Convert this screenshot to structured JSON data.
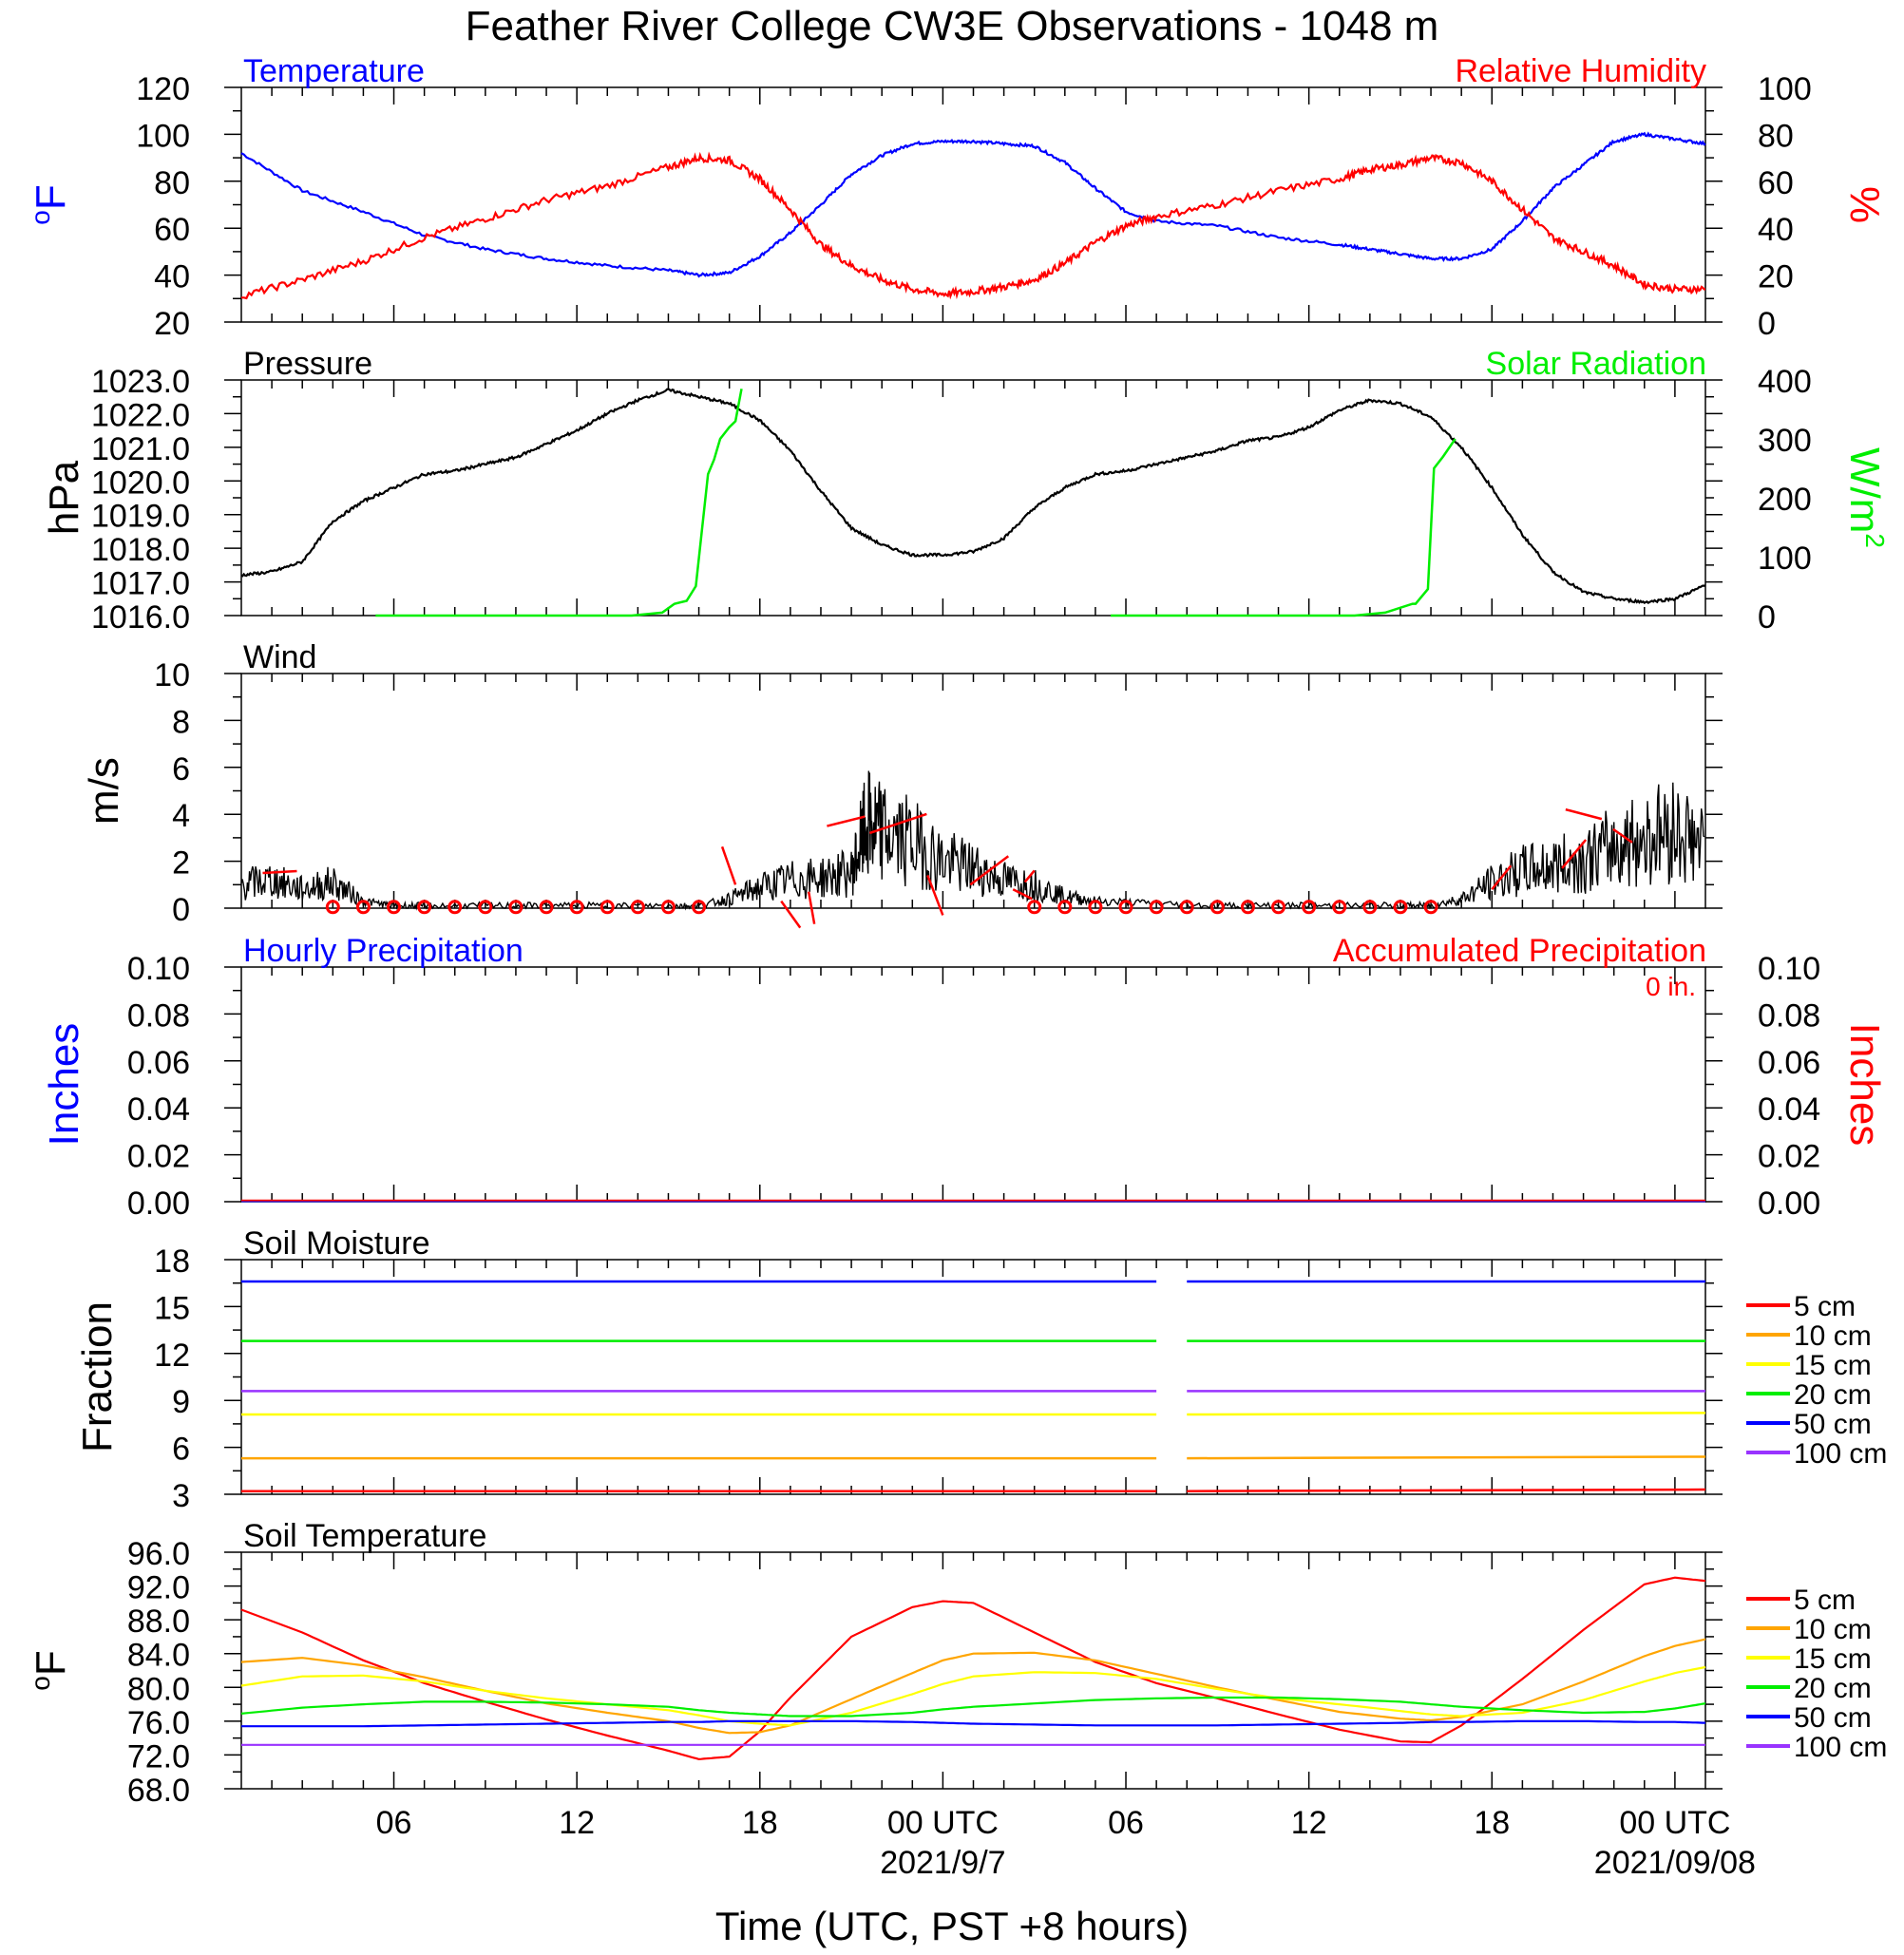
{
  "title": "Feather River College CW3E Observations - 1048 m",
  "x_axis": {
    "label": "Time (UTC, PST +8 hours)",
    "range_hours": [
      0,
      48
    ],
    "ticks": [
      {
        "h": 5,
        "label": "06"
      },
      {
        "h": 11,
        "label": "12"
      },
      {
        "h": 17,
        "label": "18"
      },
      {
        "h": 23,
        "label": "00 UTC"
      },
      {
        "h": 29,
        "label": "06"
      },
      {
        "h": 35,
        "label": "12"
      },
      {
        "h": 41,
        "label": "18"
      },
      {
        "h": 47,
        "label": "00 UTC"
      }
    ],
    "date_labels": [
      {
        "h": 23,
        "label": "2021/9/7"
      },
      {
        "h": 47,
        "label": "2021/09/08"
      }
    ]
  },
  "colors": {
    "temperature": "#0000ff",
    "humidity": "#ff0000",
    "pressure": "#000000",
    "solar": "#00ee00",
    "wind": "#000000",
    "barb": "#ff0000",
    "d5": "#ff0000",
    "d10": "#ffa500",
    "d15": "#ffff00",
    "d20": "#00ee00",
    "d50": "#0000ff",
    "d100": "#9933ff"
  },
  "panels": {
    "temp_rh": {
      "left_title": "Temperature",
      "right_title": "Relative Humidity",
      "left_unit": "oF",
      "right_unit": "%",
      "left_ticks": [
        "20",
        "40",
        "60",
        "80",
        "100",
        "120"
      ],
      "right_ticks": [
        "0",
        "20",
        "40",
        "60",
        "80",
        "100"
      ]
    },
    "pressure": {
      "left_title": "Pressure",
      "right_title": "Solar Radiation",
      "left_unit": "hPa",
      "right_unit": "W/m2",
      "left_ticks": [
        "1016.0",
        "1017.0",
        "1018.0",
        "1019.0",
        "1020.0",
        "1021.0",
        "1022.0",
        "1023.0"
      ],
      "right_ticks": [
        "0",
        "100",
        "200",
        "300",
        "400"
      ]
    },
    "wind": {
      "left_title": "Wind",
      "left_unit": "m/s",
      "left_ticks": [
        "0",
        "2",
        "4",
        "6",
        "8",
        "10"
      ]
    },
    "precip": {
      "left_title": "Hourly Precipitation",
      "right_title": "Accumulated Precipitation",
      "total_label": "0 in.",
      "left_unit": "Inches",
      "right_unit": "Inches",
      "left_ticks": [
        "0.00",
        "0.02",
        "0.04",
        "0.06",
        "0.08",
        "0.10"
      ],
      "right_ticks": [
        "0.00",
        "0.02",
        "0.04",
        "0.06",
        "0.08",
        "0.10"
      ]
    },
    "soil_moisture": {
      "left_title": "Soil Moisture",
      "left_unit": "Fraction",
      "left_ticks": [
        "3",
        "6",
        "9",
        "12",
        "15",
        "18"
      ],
      "legend": [
        "5 cm",
        "10 cm",
        "15 cm",
        "20 cm",
        "50 cm",
        "100 cm"
      ]
    },
    "soil_temp": {
      "left_title": "Soil Temperature",
      "left_unit": "oF",
      "left_ticks": [
        "68.0",
        "72.0",
        "76.0",
        "80.0",
        "84.0",
        "88.0",
        "92.0",
        "96.0"
      ],
      "legend": [
        "5 cm",
        "10 cm",
        "15 cm",
        "20 cm",
        "50 cm",
        "100 cm"
      ]
    }
  },
  "chart_data": [
    {
      "type": "line",
      "title": "Temperature",
      "x_hours": [
        0,
        2,
        4,
        6,
        8,
        10,
        12,
        14,
        15,
        16,
        17,
        18,
        19,
        20,
        21,
        22,
        23,
        24,
        25,
        26,
        27,
        28,
        29,
        30,
        32,
        34,
        36,
        37,
        38,
        39,
        40,
        41,
        42,
        43,
        44,
        45,
        46,
        47,
        48
      ],
      "series": [
        {
          "name": "Temperature",
          "axis": "left",
          "ylim": [
            20,
            120
          ],
          "values": [
            92,
            76,
            67,
            57,
            51,
            47,
            44,
            42,
            40,
            41,
            48,
            58,
            70,
            83,
            91,
            96,
            97,
            97,
            96,
            95,
            88,
            77,
            67,
            63,
            61,
            56,
            53,
            51,
            49,
            47,
            47,
            51,
            63,
            77,
            87,
            97,
            100,
            98,
            96
          ]
        },
        {
          "name": "Relative Humidity",
          "axis": "right",
          "ylim": [
            0,
            100
          ],
          "values": [
            11,
            18,
            26,
            36,
            44,
            52,
            58,
            66,
            70,
            69,
            61,
            48,
            33,
            24,
            18,
            14,
            12,
            13,
            15,
            18,
            25,
            34,
            41,
            45,
            50,
            56,
            61,
            65,
            67,
            70,
            68,
            60,
            48,
            36,
            30,
            24,
            16,
            14,
            14
          ]
        }
      ]
    },
    {
      "type": "line",
      "title": "Pressure",
      "x_hours": [
        0,
        1,
        2,
        3,
        4,
        5,
        6,
        7,
        8,
        9,
        10,
        11,
        12,
        13,
        14,
        15,
        16,
        17,
        18,
        19,
        20,
        21,
        22,
        23,
        24,
        25,
        26,
        27,
        28,
        29,
        30,
        31,
        32,
        33,
        34,
        35,
        36,
        37,
        38,
        39,
        40,
        41,
        42,
        43,
        44,
        45,
        46,
        47,
        48
      ],
      "series": [
        {
          "name": "Pressure",
          "axis": "left",
          "ylim": [
            1016,
            1023
          ],
          "values": [
            1017.2,
            1017.3,
            1017.6,
            1018.8,
            1019.4,
            1019.8,
            1020.2,
            1020.3,
            1020.5,
            1020.7,
            1021.1,
            1021.5,
            1022.0,
            1022.4,
            1022.7,
            1022.5,
            1022.3,
            1021.8,
            1020.9,
            1019.7,
            1018.6,
            1018.1,
            1017.8,
            1017.8,
            1017.9,
            1018.3,
            1019.2,
            1019.8,
            1020.2,
            1020.3,
            1020.5,
            1020.7,
            1020.9,
            1021.2,
            1021.3,
            1021.6,
            1022.1,
            1022.4,
            1022.3,
            1021.9,
            1021.0,
            1019.8,
            1018.4,
            1017.3,
            1016.7,
            1016.5,
            1016.4,
            1016.5,
            1016.9
          ]
        }
      ]
    },
    {
      "type": "line",
      "title": "Solar Radiation",
      "x_hours": [
        4.4,
        12.8,
        13.8,
        14.2,
        14.6,
        14.9,
        15.3,
        15.5,
        15.7,
        16,
        16.2,
        16.4,
        28.5,
        36.5,
        37.5,
        38.4,
        38.5,
        38.9,
        39.1,
        39.4,
        39.8
      ],
      "series": [
        {
          "name": "Solar Radiation",
          "axis": "right",
          "ylim": [
            0,
            400
          ],
          "values": [
            0,
            0,
            5,
            20,
            25,
            50,
            240,
            265,
            300,
            320,
            330,
            385,
            0,
            0,
            5,
            20,
            20,
            45,
            250,
            270,
            300
          ]
        }
      ]
    },
    {
      "type": "line",
      "title": "Wind",
      "x_hours": [
        0,
        1,
        2,
        3,
        4,
        5,
        6,
        8,
        10,
        12,
        14,
        15,
        16,
        17,
        18,
        19,
        20,
        20.5,
        21,
        22,
        23,
        24,
        25,
        26,
        27,
        28,
        30,
        32,
        34,
        36,
        38,
        39,
        40,
        41,
        42,
        43,
        44,
        45,
        46,
        47,
        48
      ],
      "series": [
        {
          "name": "Wind",
          "axis": "left",
          "ylim": [
            0,
            10
          ],
          "values": [
            1,
            1.2,
            0.8,
            1.1,
            0.3,
            0.1,
            0.1,
            0.1,
            0.1,
            0.1,
            0.1,
            0.1,
            0.4,
            0.9,
            1.2,
            1.3,
            1.5,
            3.5,
            3.2,
            2.8,
            2.0,
            1.7,
            1.2,
            1.0,
            0.5,
            0.3,
            0.2,
            0.1,
            0.1,
            0.1,
            0.1,
            0.1,
            0.4,
            1.1,
            1.6,
            1.8,
            2.0,
            2.6,
            3.0,
            3.4,
            2.5
          ]
        }
      ]
    },
    {
      "type": "line",
      "title": "Hourly Precipitation",
      "series": [
        {
          "name": "Hourly Precipitation",
          "axis": "left",
          "ylim": [
            0,
            0.1
          ],
          "values": [
            0,
            0
          ]
        },
        {
          "name": "Accumulated Precipitation",
          "axis": "right",
          "ylim": [
            0,
            0.1
          ],
          "values": [
            0,
            0
          ]
        }
      ],
      "x_hours": [
        0,
        48
      ]
    },
    {
      "type": "line",
      "title": "Soil Moisture",
      "ylim": [
        3,
        18
      ],
      "x_hours": [
        0,
        30,
        31,
        48
      ],
      "series": [
        {
          "name": "5 cm",
          "values": [
            3.2,
            3.2,
            3.2,
            3.3
          ]
        },
        {
          "name": "10 cm",
          "values": [
            5.3,
            5.3,
            5.3,
            5.4
          ]
        },
        {
          "name": "15 cm",
          "values": [
            8.1,
            8.1,
            8.1,
            8.2
          ]
        },
        {
          "name": "20 cm",
          "values": [
            12.8,
            12.8,
            12.8,
            12.8
          ]
        },
        {
          "name": "50 cm",
          "values": [
            16.6,
            16.6,
            16.6,
            16.6
          ]
        },
        {
          "name": "100 cm",
          "values": [
            9.6,
            9.6,
            9.6,
            9.6
          ]
        }
      ]
    },
    {
      "type": "line",
      "title": "Soil Temperature",
      "ylim": [
        68,
        96
      ],
      "x_hours": [
        0,
        2,
        4,
        6,
        8,
        10,
        12,
        14,
        15,
        16,
        17,
        18,
        20,
        22,
        23,
        24,
        26,
        28,
        30,
        32,
        34,
        36,
        38,
        39,
        40,
        42,
        44,
        46,
        47,
        48
      ],
      "series": [
        {
          "name": "5 cm",
          "values": [
            89.2,
            86.5,
            83.2,
            80.5,
            78.3,
            76.2,
            74.3,
            72.5,
            71.5,
            71.8,
            74.8,
            78.8,
            86.0,
            89.5,
            90.2,
            90.0,
            86.5,
            83.0,
            80.5,
            78.7,
            76.8,
            75.0,
            73.6,
            73.5,
            75.5,
            81.0,
            86.8,
            92.2,
            93.0,
            92.6
          ]
        },
        {
          "name": "10 cm",
          "values": [
            83.0,
            83.5,
            82.6,
            81.2,
            79.6,
            78.1,
            77.0,
            76.0,
            75.2,
            74.6,
            74.7,
            75.5,
            78.6,
            81.7,
            83.2,
            84.0,
            84.1,
            83.2,
            81.6,
            80.0,
            78.5,
            77.1,
            76.3,
            76.1,
            76.5,
            78.0,
            80.7,
            83.7,
            84.9,
            85.7
          ]
        },
        {
          "name": "15 cm",
          "values": [
            80.2,
            81.3,
            81.4,
            80.7,
            79.6,
            78.7,
            78.0,
            77.3,
            76.7,
            76.0,
            75.7,
            75.5,
            77.0,
            79.2,
            80.4,
            81.3,
            81.8,
            81.7,
            81.0,
            79.8,
            78.7,
            78.0,
            77.2,
            76.8,
            76.6,
            77.0,
            78.5,
            80.7,
            81.7,
            82.4
          ]
        },
        {
          "name": "20 cm",
          "values": [
            76.9,
            77.6,
            78.0,
            78.3,
            78.3,
            78.2,
            78.0,
            77.7,
            77.3,
            77.0,
            76.8,
            76.6,
            76.6,
            77.0,
            77.4,
            77.7,
            78.1,
            78.5,
            78.7,
            78.8,
            78.8,
            78.6,
            78.3,
            78.0,
            77.7,
            77.3,
            77.0,
            77.1,
            77.5,
            78.1
          ]
        },
        {
          "name": "50 cm",
          "values": [
            75.4,
            75.4,
            75.4,
            75.5,
            75.6,
            75.7,
            75.8,
            75.9,
            75.9,
            76.0,
            76.0,
            76.0,
            76.0,
            75.9,
            75.8,
            75.7,
            75.6,
            75.5,
            75.5,
            75.5,
            75.6,
            75.7,
            75.8,
            75.9,
            75.9,
            76.0,
            76.0,
            75.9,
            75.9,
            75.8
          ]
        },
        {
          "name": "100 cm",
          "values": [
            73.2,
            73.2,
            73.2,
            73.2,
            73.2,
            73.2,
            73.2,
            73.2,
            73.2,
            73.2,
            73.2,
            73.2,
            73.2,
            73.2,
            73.2,
            73.2,
            73.2,
            73.2,
            73.2,
            73.2,
            73.2,
            73.2,
            73.2,
            73.2,
            73.2,
            73.2,
            73.2,
            73.2,
            73.2,
            73.2
          ]
        }
      ]
    }
  ]
}
